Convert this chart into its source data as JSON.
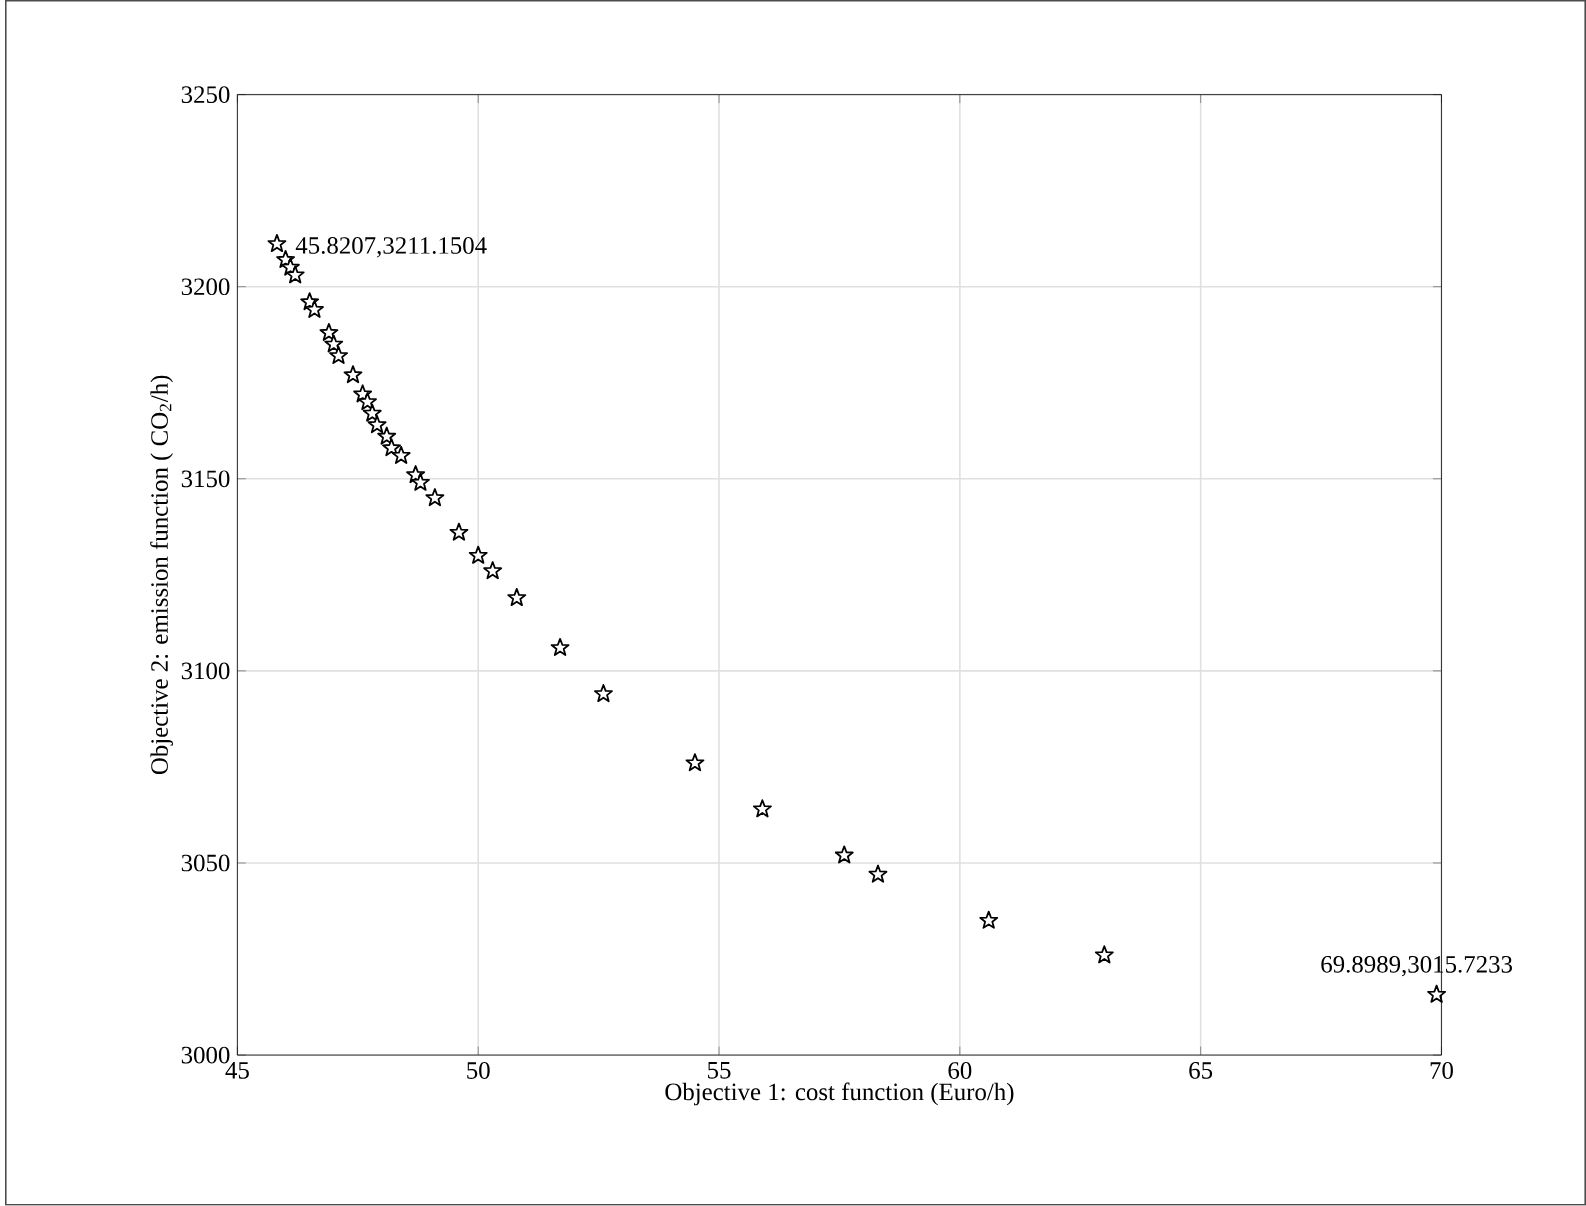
{
  "chart_data": {
    "type": "scatter",
    "xlabel": "Objective 1: cost function (Euro/h)",
    "ylabel": "Objective 2: emission function ( CO$_{2}$/h)",
    "xlim": [
      45,
      70
    ],
    "xticks": [
      45,
      50,
      55,
      60,
      65,
      70
    ],
    "ylim": [
      3000,
      3250
    ],
    "yticks": [
      3000,
      3050,
      3100,
      3150,
      3200,
      3250
    ],
    "grid": true,
    "marker": "star",
    "series": [
      {
        "color": "#000000",
        "x": [
          45.8207,
          46.0,
          46.1,
          46.2,
          46.5,
          46.6,
          46.9,
          47.0,
          47.1,
          47.4,
          47.6,
          47.7,
          47.8,
          47.9,
          48.1,
          48.2,
          48.4,
          48.7,
          48.8,
          49.1,
          49.6,
          50.0,
          50.3,
          50.8,
          51.7,
          52.6,
          54.5,
          55.9,
          57.6,
          58.3,
          60.6,
          63.0,
          69.8989
        ],
        "values": [
          3211.1504,
          3207,
          3205,
          3203,
          3196,
          3194,
          3188,
          3185,
          3182,
          3177,
          3172,
          3170,
          3167,
          3164,
          3161,
          3158,
          3156,
          3151,
          3149,
          3145,
          3136,
          3130,
          3126,
          3119,
          3106,
          3094,
          3076,
          3064,
          3052,
          3047,
          3035,
          3026,
          3015.7233
        ]
      }
    ],
    "annotations": [
      {
        "text": "45.8207,3211.1504",
        "x": 45.8207,
        "y": 3211.1504
      },
      {
        "text": "69.8989,3015.7233",
        "x": 69.8989,
        "y": 3015.7233
      }
    ]
  }
}
